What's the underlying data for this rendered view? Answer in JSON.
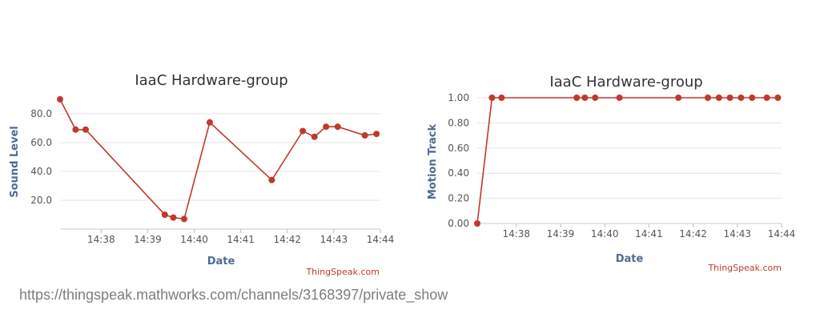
{
  "source_url": "https://thingspeak.mathworks.com/channels/3168397/private_show",
  "colors": {
    "series": "#c0392b",
    "title": "#333333",
    "axis_label": "#4f6b8e",
    "credit": "#c0392b",
    "grid": "#e6e6e6",
    "tick": "#555555"
  },
  "chart_data": [
    {
      "type": "line",
      "title": "IaaC Hardware-group",
      "xlabel": "Date",
      "ylabel": "Sound Level",
      "credit": "ThingSpeak.com",
      "x_ticks": [
        "14:38",
        "14:39",
        "14:40",
        "14:41",
        "14:42",
        "14:43",
        "14:44"
      ],
      "y_ticks": [
        "20.0",
        "40.0",
        "60.0",
        "80.0"
      ],
      "xlim": [
        "14:37:07",
        "14:44:00"
      ],
      "ylim": [
        0,
        95
      ],
      "grid": true,
      "series": [
        {
          "x": [
            "14:37:07",
            "14:37:27",
            "14:37:40",
            "14:39:22",
            "14:39:33",
            "14:39:47",
            "14:40:20",
            "14:41:40",
            "14:42:20",
            "14:42:35",
            "14:42:50",
            "14:43:05",
            "14:43:40",
            "14:43:55"
          ],
          "y": [
            90,
            69,
            69,
            10,
            8,
            7,
            74,
            34,
            68,
            64,
            71,
            71,
            65,
            66
          ]
        }
      ]
    },
    {
      "type": "line",
      "title": "IaaC Hardware-group",
      "xlabel": "Date",
      "ylabel": "Motion Track",
      "credit": "ThingSpeak.com",
      "x_ticks": [
        "14:38",
        "14:39",
        "14:40",
        "14:41",
        "14:42",
        "14:43",
        "14:44"
      ],
      "y_ticks": [
        "0.00",
        "0.20",
        "0.40",
        "0.60",
        "0.80",
        "1.00"
      ],
      "xlim": [
        "14:37:07",
        "14:44:00"
      ],
      "ylim": [
        0,
        1
      ],
      "grid": true,
      "series": [
        {
          "x": [
            "14:37:07",
            "14:37:27",
            "14:37:40",
            "14:39:22",
            "14:39:33",
            "14:39:47",
            "14:40:20",
            "14:41:40",
            "14:42:20",
            "14:42:35",
            "14:42:50",
            "14:43:05",
            "14:43:20",
            "14:43:40",
            "14:43:55"
          ],
          "y": [
            0,
            1,
            1,
            1,
            1,
            1,
            1,
            1,
            1,
            1,
            1,
            1,
            1,
            1,
            1
          ]
        }
      ]
    }
  ]
}
